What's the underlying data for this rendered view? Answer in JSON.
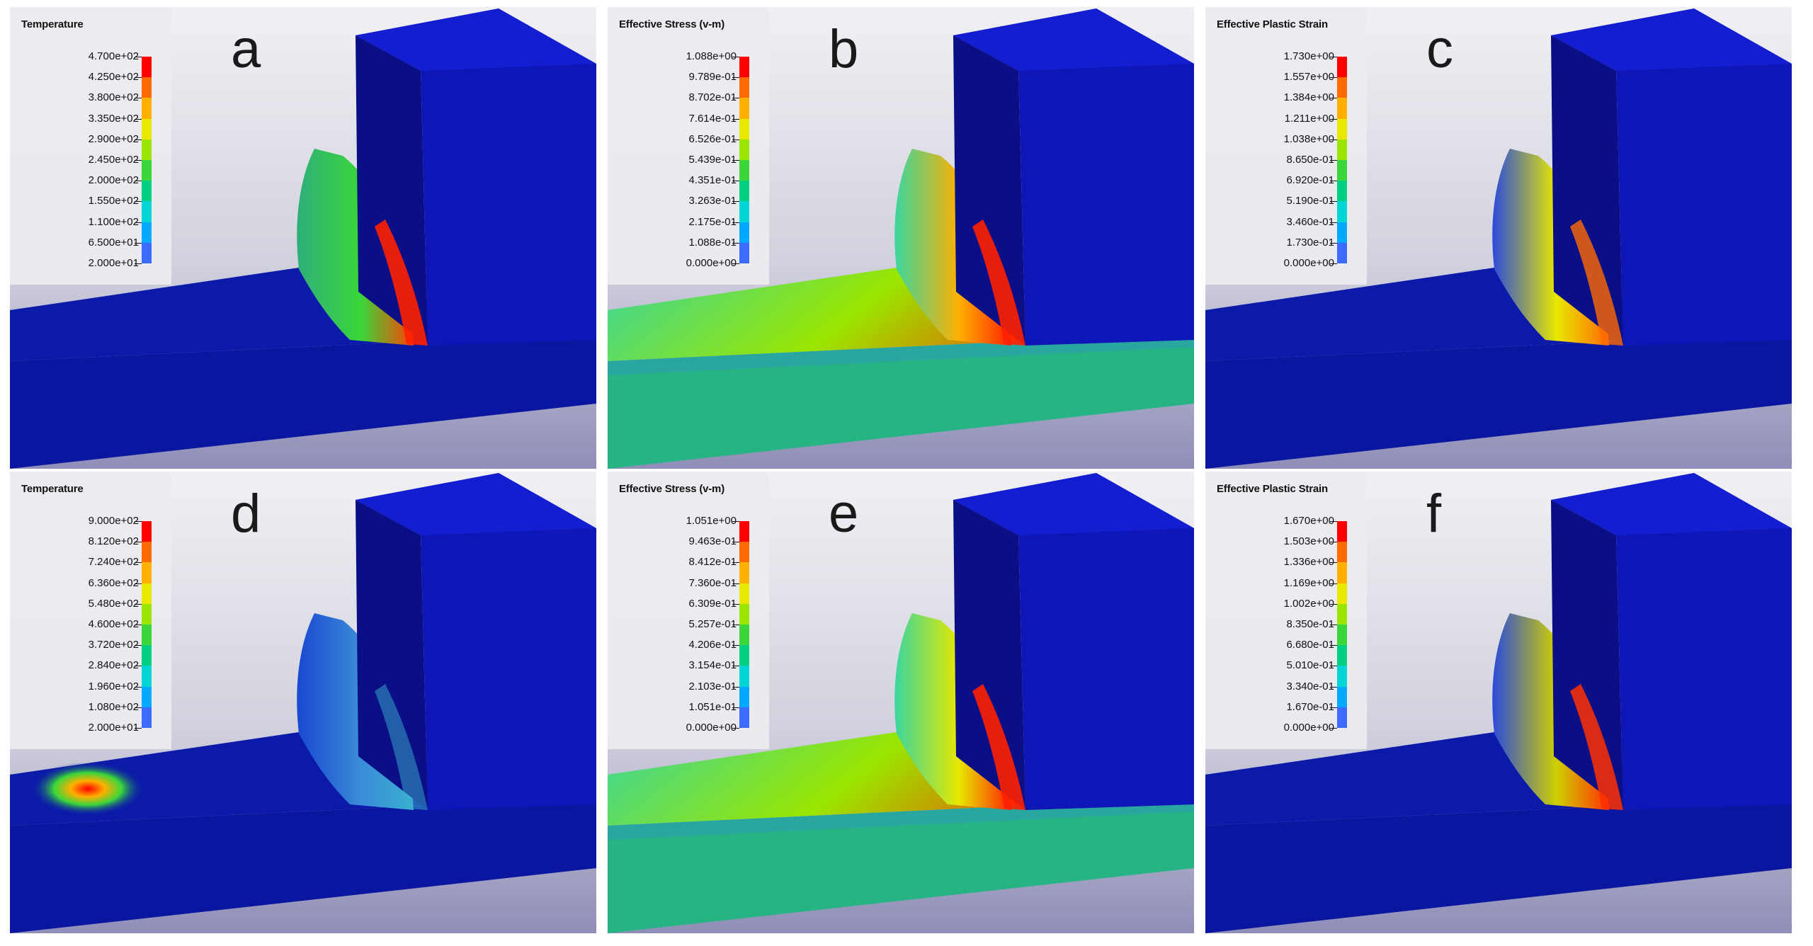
{
  "panels": [
    {
      "letter": "a",
      "legend_title": "Temperature",
      "ticks": [
        "4.700e+02",
        "4.250e+02",
        "3.800e+02",
        "3.350e+02",
        "2.900e+02",
        "2.450e+02",
        "2.000e+02",
        "1.550e+02",
        "1.100e+02",
        "6.500e+01",
        "2.000e+01"
      ]
    },
    {
      "letter": "b",
      "legend_title": "Effective Stress (v-m)",
      "ticks": [
        "1.088e+00",
        "9.789e-01",
        "8.702e-01",
        "7.614e-01",
        "6.526e-01",
        "5.439e-01",
        "4.351e-01",
        "3.263e-01",
        "2.175e-01",
        "1.088e-01",
        "0.000e+00"
      ]
    },
    {
      "letter": "c",
      "legend_title": "Effective Plastic Strain",
      "ticks": [
        "1.730e+00",
        "1.557e+00",
        "1.384e+00",
        "1.211e+00",
        "1.038e+00",
        "8.650e-01",
        "6.920e-01",
        "5.190e-01",
        "3.460e-01",
        "1.730e-01",
        "0.000e+00"
      ]
    },
    {
      "letter": "d",
      "legend_title": "Temperature",
      "ticks": [
        "9.000e+02",
        "8.120e+02",
        "7.240e+02",
        "6.360e+02",
        "5.480e+02",
        "4.600e+02",
        "3.720e+02",
        "2.840e+02",
        "1.960e+02",
        "1.080e+02",
        "2.000e+01"
      ]
    },
    {
      "letter": "e",
      "legend_title": "Effective Stress (v-m)",
      "ticks": [
        "1.051e+00",
        "9.463e-01",
        "8.412e-01",
        "7.360e-01",
        "6.309e-01",
        "5.257e-01",
        "4.206e-01",
        "3.154e-01",
        "2.103e-01",
        "1.051e-01",
        "0.000e+00"
      ]
    },
    {
      "letter": "f",
      "legend_title": "Effective Plastic Strain",
      "ticks": [
        "1.670e+00",
        "1.503e+00",
        "1.336e+00",
        "1.169e+00",
        "1.002e+00",
        "8.350e-01",
        "6.680e-01",
        "5.010e-01",
        "3.340e-01",
        "1.670e-01",
        "0.000e+00"
      ]
    }
  ],
  "colormap": [
    "#ff0000",
    "#ff6a00",
    "#ffb000",
    "#e8e800",
    "#9ae600",
    "#3ad63a",
    "#00d080",
    "#00d6d6",
    "#00a8ff",
    "#3a6cff",
    "#0000ff"
  ],
  "colors": {
    "tool": "#0f16b8",
    "tool_top": "#131ed0",
    "tool_side": "#0a0f86",
    "work": "#0b1aa8"
  }
}
